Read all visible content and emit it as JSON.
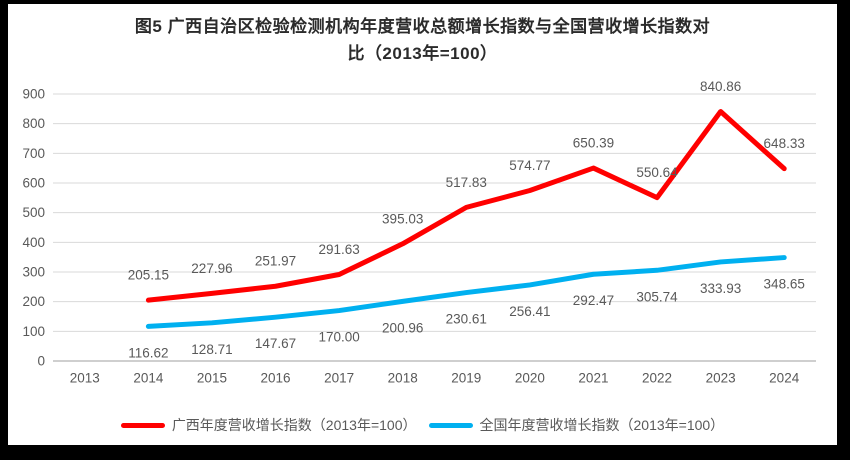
{
  "header": {
    "title_line1": "图5  广西自治区检验检测机构年度营收总额增长指数与全国营收增长指数对",
    "title_line2": "比（2013年=100）"
  },
  "chart_data": {
    "type": "line",
    "title": "图5 广西自治区检验检测机构年度营收总额增长指数与全国营收增长指数对比（2013年=100）",
    "categories": [
      "2013",
      "2014",
      "2015",
      "2016",
      "2017",
      "2018",
      "2019",
      "2020",
      "2021",
      "2022",
      "2023",
      "2024"
    ],
    "series": [
      {
        "name": "广西年度营收增长指数（2013年=100）",
        "color": "#ff0000",
        "label_position": "above",
        "values": [
          null,
          205.15,
          227.96,
          251.97,
          291.63,
          395.03,
          517.83,
          574.77,
          650.39,
          550.64,
          840.86,
          648.33
        ]
      },
      {
        "name": "全国年度营收增长指数（2013年=100）",
        "color": "#00b0f0",
        "label_position": "below",
        "values": [
          null,
          116.62,
          128.71,
          147.67,
          170.0,
          200.96,
          230.61,
          256.41,
          292.47,
          305.74,
          333.93,
          348.65
        ]
      }
    ],
    "ylim": [
      0,
      900
    ],
    "y_ticks": [
      0,
      100,
      200,
      300,
      400,
      500,
      600,
      700,
      800,
      900
    ],
    "xlabel": "",
    "ylabel": "",
    "grid": true,
    "legend_position": "bottom",
    "label_decimals": 2
  },
  "colors": {
    "grid": "#d9d9d9",
    "baseline": "#bfbfbf",
    "axis_text": "#595959",
    "data_label_text": "#595959",
    "title_text": "#2b2b2b",
    "frame": "#000000",
    "background": "#ffffff"
  }
}
